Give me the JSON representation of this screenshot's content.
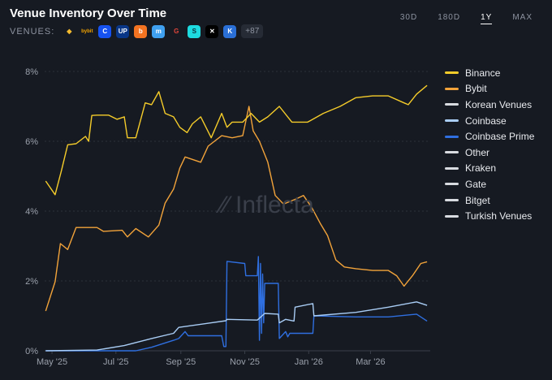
{
  "header": {
    "title": "Venue Inventory Over Time",
    "venues_label": "VENUES:",
    "venue_icons": [
      {
        "name": "binance-icon",
        "glyph": "◆",
        "color": "#f3ba2f",
        "bg": "transparent"
      },
      {
        "name": "bybit-icon",
        "glyph": "bybit",
        "color": "#f7a600",
        "bg": "transparent"
      },
      {
        "name": "coinbase-icon",
        "glyph": "C",
        "color": "#ffffff",
        "bg": "#1652f0"
      },
      {
        "name": "upbit-icon",
        "glyph": "UP",
        "color": "#ffffff",
        "bg": "#093687"
      },
      {
        "name": "bithumb-icon",
        "glyph": "b",
        "color": "#ffffff",
        "bg": "#f37321"
      },
      {
        "name": "kraken-icon",
        "glyph": "m",
        "color": "#ffffff",
        "bg": "#3fa0f0"
      },
      {
        "name": "gate-icon",
        "glyph": "G",
        "color": "#e0453a",
        "bg": "transparent"
      },
      {
        "name": "bitget-icon",
        "glyph": "S",
        "color": "#0b2f3b",
        "bg": "#1ddbe0"
      },
      {
        "name": "okx-icon",
        "glyph": "✕",
        "color": "#ffffff",
        "bg": "#000000"
      },
      {
        "name": "kraken-pro-icon",
        "glyph": "K",
        "color": "#ffffff",
        "bg": "#2a6fd6"
      }
    ],
    "more_venues": "+87"
  },
  "ranges": [
    {
      "label": "30D",
      "active": false
    },
    {
      "label": "180D",
      "active": false
    },
    {
      "label": "1Y",
      "active": true
    },
    {
      "label": "MAX",
      "active": false
    }
  ],
  "watermark": "Inflecta",
  "chart_data": {
    "type": "line",
    "title": "Venue Inventory Over Time",
    "xlabel": "",
    "ylabel": "",
    "ylim": [
      0,
      8
    ],
    "xlim": [
      "2025-04-24",
      "2026-04-27"
    ],
    "y_ticks": [
      "0%",
      "2%",
      "4%",
      "6%",
      "8%"
    ],
    "y_tick_values": [
      0,
      2,
      4,
      6,
      8
    ],
    "x_ticks": [
      {
        "label": "May '25",
        "date": "2025-05-01"
      },
      {
        "label": "Jul '25",
        "date": "2025-07-01"
      },
      {
        "label": "Sep '25",
        "date": "2025-09-01"
      },
      {
        "label": "Nov '25",
        "date": "2025-11-01"
      },
      {
        "label": "Jan '26",
        "date": "2026-01-01"
      },
      {
        "label": "Mar '26",
        "date": "2026-03-01"
      }
    ],
    "grid": true,
    "legend_position": "right",
    "series": [
      {
        "name": "Binance",
        "color": "#f5cc2a",
        "points": [
          [
            "2025-04-25",
            4.86
          ],
          [
            "2025-05-04",
            4.47
          ],
          [
            "2025-05-10",
            5.16
          ],
          [
            "2025-05-16",
            5.9
          ],
          [
            "2025-05-24",
            5.93
          ],
          [
            "2025-06-02",
            6.14
          ],
          [
            "2025-06-05",
            6.0
          ],
          [
            "2025-06-08",
            6.74
          ],
          [
            "2025-06-13",
            6.75
          ],
          [
            "2025-06-24",
            6.75
          ],
          [
            "2025-07-02",
            6.63
          ],
          [
            "2025-07-09",
            6.7
          ],
          [
            "2025-07-12",
            6.1
          ],
          [
            "2025-07-20",
            6.1
          ],
          [
            "2025-07-29",
            7.1
          ],
          [
            "2025-08-04",
            7.05
          ],
          [
            "2025-08-11",
            7.42
          ],
          [
            "2025-08-17",
            6.8
          ],
          [
            "2025-08-25",
            6.7
          ],
          [
            "2025-08-31",
            6.4
          ],
          [
            "2025-09-07",
            6.25
          ],
          [
            "2025-09-12",
            6.5
          ],
          [
            "2025-09-20",
            6.7
          ],
          [
            "2025-09-30",
            6.1
          ],
          [
            "2025-10-10",
            6.8
          ],
          [
            "2025-10-15",
            6.4
          ],
          [
            "2025-10-20",
            6.55
          ],
          [
            "2025-10-30",
            6.55
          ],
          [
            "2025-11-07",
            6.8
          ],
          [
            "2025-11-15",
            6.55
          ],
          [
            "2025-11-23",
            6.7
          ],
          [
            "2025-12-04",
            7.0
          ],
          [
            "2025-12-16",
            6.55
          ],
          [
            "2025-12-31",
            6.55
          ],
          [
            "2026-01-15",
            6.8
          ],
          [
            "2026-01-31",
            7.0
          ],
          [
            "2026-02-15",
            7.25
          ],
          [
            "2026-03-03",
            7.3
          ],
          [
            "2026-03-18",
            7.3
          ],
          [
            "2026-04-02",
            7.1
          ],
          [
            "2026-04-06",
            7.05
          ],
          [
            "2026-04-14",
            7.35
          ],
          [
            "2026-04-24",
            7.6
          ]
        ]
      },
      {
        "name": "Bybit",
        "color": "#f2a33a",
        "points": [
          [
            "2025-04-25",
            1.14
          ],
          [
            "2025-05-04",
            1.98
          ],
          [
            "2025-05-09",
            3.07
          ],
          [
            "2025-05-16",
            2.9
          ],
          [
            "2025-05-24",
            3.53
          ],
          [
            "2025-06-02",
            3.53
          ],
          [
            "2025-06-13",
            3.53
          ],
          [
            "2025-06-19",
            3.42
          ],
          [
            "2025-07-07",
            3.45
          ],
          [
            "2025-07-12",
            3.26
          ],
          [
            "2025-07-20",
            3.5
          ],
          [
            "2025-08-01",
            3.26
          ],
          [
            "2025-08-11",
            3.6
          ],
          [
            "2025-08-17",
            4.23
          ],
          [
            "2025-08-25",
            4.63
          ],
          [
            "2025-08-31",
            5.23
          ],
          [
            "2025-09-05",
            5.55
          ],
          [
            "2025-09-20",
            5.4
          ],
          [
            "2025-09-27",
            5.86
          ],
          [
            "2025-10-10",
            6.16
          ],
          [
            "2025-10-20",
            6.1
          ],
          [
            "2025-10-30",
            6.16
          ],
          [
            "2025-11-05",
            7.0
          ],
          [
            "2025-11-09",
            6.3
          ],
          [
            "2025-11-15",
            6.0
          ],
          [
            "2025-11-23",
            5.4
          ],
          [
            "2025-11-30",
            4.45
          ],
          [
            "2025-12-08",
            4.2
          ],
          [
            "2025-12-20",
            4.35
          ],
          [
            "2025-12-27",
            4.45
          ],
          [
            "2026-01-04",
            4.1
          ],
          [
            "2026-01-12",
            3.65
          ],
          [
            "2026-01-19",
            3.3
          ],
          [
            "2026-01-27",
            2.6
          ],
          [
            "2026-02-04",
            2.4
          ],
          [
            "2026-02-15",
            2.35
          ],
          [
            "2026-03-03",
            2.3
          ],
          [
            "2026-03-18",
            2.3
          ],
          [
            "2026-03-26",
            2.15
          ],
          [
            "2026-04-02",
            1.85
          ],
          [
            "2026-04-10",
            2.15
          ],
          [
            "2026-04-18",
            2.5
          ],
          [
            "2026-04-24",
            2.55
          ]
        ]
      },
      {
        "name": "Korean Venues",
        "color": "#d8dbe0",
        "points": []
      },
      {
        "name": "Coinbase",
        "color": "#a9cdf5",
        "points": [
          [
            "2025-04-25",
            0
          ],
          [
            "2025-06-13",
            0.02
          ],
          [
            "2025-07-09",
            0.15
          ],
          [
            "2025-08-04",
            0.35
          ],
          [
            "2025-08-25",
            0.5
          ],
          [
            "2025-08-30",
            0.67
          ],
          [
            "2025-10-14",
            0.86
          ],
          [
            "2025-10-15",
            0.9
          ],
          [
            "2025-11-13",
            0.88
          ],
          [
            "2025-11-20",
            1.07
          ],
          [
            "2025-12-03",
            1.05
          ],
          [
            "2025-12-04",
            0.8
          ],
          [
            "2025-12-10",
            0.9
          ],
          [
            "2025-12-18",
            0.85
          ],
          [
            "2025-12-19",
            1.25
          ],
          [
            "2026-01-05",
            1.35
          ],
          [
            "2026-01-06",
            1.0
          ],
          [
            "2026-02-15",
            1.1
          ],
          [
            "2026-03-18",
            1.25
          ],
          [
            "2026-04-14",
            1.4
          ],
          [
            "2026-04-24",
            1.3
          ]
        ]
      },
      {
        "name": "Coinbase Prime",
        "color": "#2f6fe0",
        "points": [
          [
            "2025-04-25",
            0
          ],
          [
            "2025-07-20",
            0
          ],
          [
            "2025-08-04",
            0.1
          ],
          [
            "2025-08-25",
            0.3
          ],
          [
            "2025-08-30",
            0.35
          ],
          [
            "2025-09-05",
            0.55
          ],
          [
            "2025-09-08",
            0.43
          ],
          [
            "2025-10-10",
            0.43
          ],
          [
            "2025-10-12",
            0.12
          ],
          [
            "2025-10-14",
            0.12
          ],
          [
            "2025-10-15",
            2.56
          ],
          [
            "2025-11-01",
            2.5
          ],
          [
            "2025-11-02",
            2.15
          ],
          [
            "2025-11-13",
            2.15
          ],
          [
            "2025-11-14",
            2.7
          ],
          [
            "2025-11-15",
            0.3
          ],
          [
            "2025-11-16",
            2.5
          ],
          [
            "2025-11-17",
            0.5
          ],
          [
            "2025-11-18",
            2.2
          ],
          [
            "2025-11-19",
            0.8
          ],
          [
            "2025-11-20",
            1.93
          ],
          [
            "2025-12-03",
            1.93
          ],
          [
            "2025-12-04",
            0.35
          ],
          [
            "2025-12-10",
            0.55
          ],
          [
            "2025-12-12",
            0.4
          ],
          [
            "2025-12-14",
            0.5
          ],
          [
            "2026-01-05",
            0.5
          ],
          [
            "2026-01-06",
            1.0
          ],
          [
            "2026-02-15",
            0.97
          ],
          [
            "2026-03-18",
            0.97
          ],
          [
            "2026-04-14",
            1.05
          ],
          [
            "2026-04-24",
            0.85
          ]
        ]
      },
      {
        "name": "Other",
        "color": "#d8dbe0",
        "points": []
      },
      {
        "name": "Kraken",
        "color": "#d8dbe0",
        "points": []
      },
      {
        "name": "Gate",
        "color": "#d8dbe0",
        "points": []
      },
      {
        "name": "Bitget",
        "color": "#d8dbe0",
        "points": []
      },
      {
        "name": "Turkish Venues",
        "color": "#d8dbe0",
        "points": []
      }
    ]
  }
}
